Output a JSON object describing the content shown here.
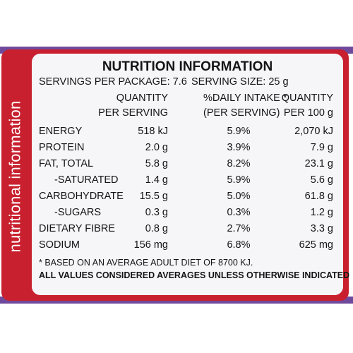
{
  "side_label": "nutritional information",
  "title": "NUTRITION INFORMATION",
  "servings_per_package": "SERVINGS PER PACKAGE: 7.6",
  "serving_size": "SERVING SIZE: 25 g",
  "headers": {
    "qty_line1": "QUANTITY",
    "qty_line2": "PER SERVING",
    "pct_line1": "%DAILY INTAKE *",
    "pct_line2": "(PER SERVING)",
    "per100_line1": "QUANTITY",
    "per100_line2": "PER 100 g"
  },
  "rows": [
    {
      "label": "ENERGY",
      "per_serving": "518 kJ",
      "daily": "5.9%",
      "per_100g": "2,070 kJ"
    },
    {
      "label": "PROTEIN",
      "per_serving": "2.0 g",
      "daily": "3.9%",
      "per_100g": "7.9 g"
    },
    {
      "label": "FAT, TOTAL",
      "per_serving": "5.8 g",
      "daily": "8.2%",
      "per_100g": "23.1 g"
    },
    {
      "label": "-SATURATED",
      "per_serving": "1.4 g",
      "daily": "5.9%",
      "per_100g": "5.6 g"
    },
    {
      "label": "CARBOHYDRATE",
      "per_serving": "15.5 g",
      "daily": "5.0%",
      "per_100g": "61.8 g"
    },
    {
      "label": "-SUGARS",
      "per_serving": "0.3 g",
      "daily": "0.3%",
      "per_100g": "1.2 g"
    },
    {
      "label": "DIETARY FIBRE",
      "per_serving": "0.8 g",
      "daily": "2.7%",
      "per_100g": "3.3 g"
    },
    {
      "label": "SODIUM",
      "per_serving": "156 mg",
      "daily": "6.8%",
      "per_100g": "625 mg"
    }
  ],
  "footnote": "* BASED ON AN AVERAGE ADULT DIET OF 8700 KJ.",
  "footnote_bold": "ALL VALUES CONSIDERED AVERAGES UNLESS OTHERWISE INDICATED",
  "colors": {
    "panel_red": "#c8202e",
    "edge_purple": "#6f4a9c",
    "card_bg": "#f6f6f9"
  }
}
